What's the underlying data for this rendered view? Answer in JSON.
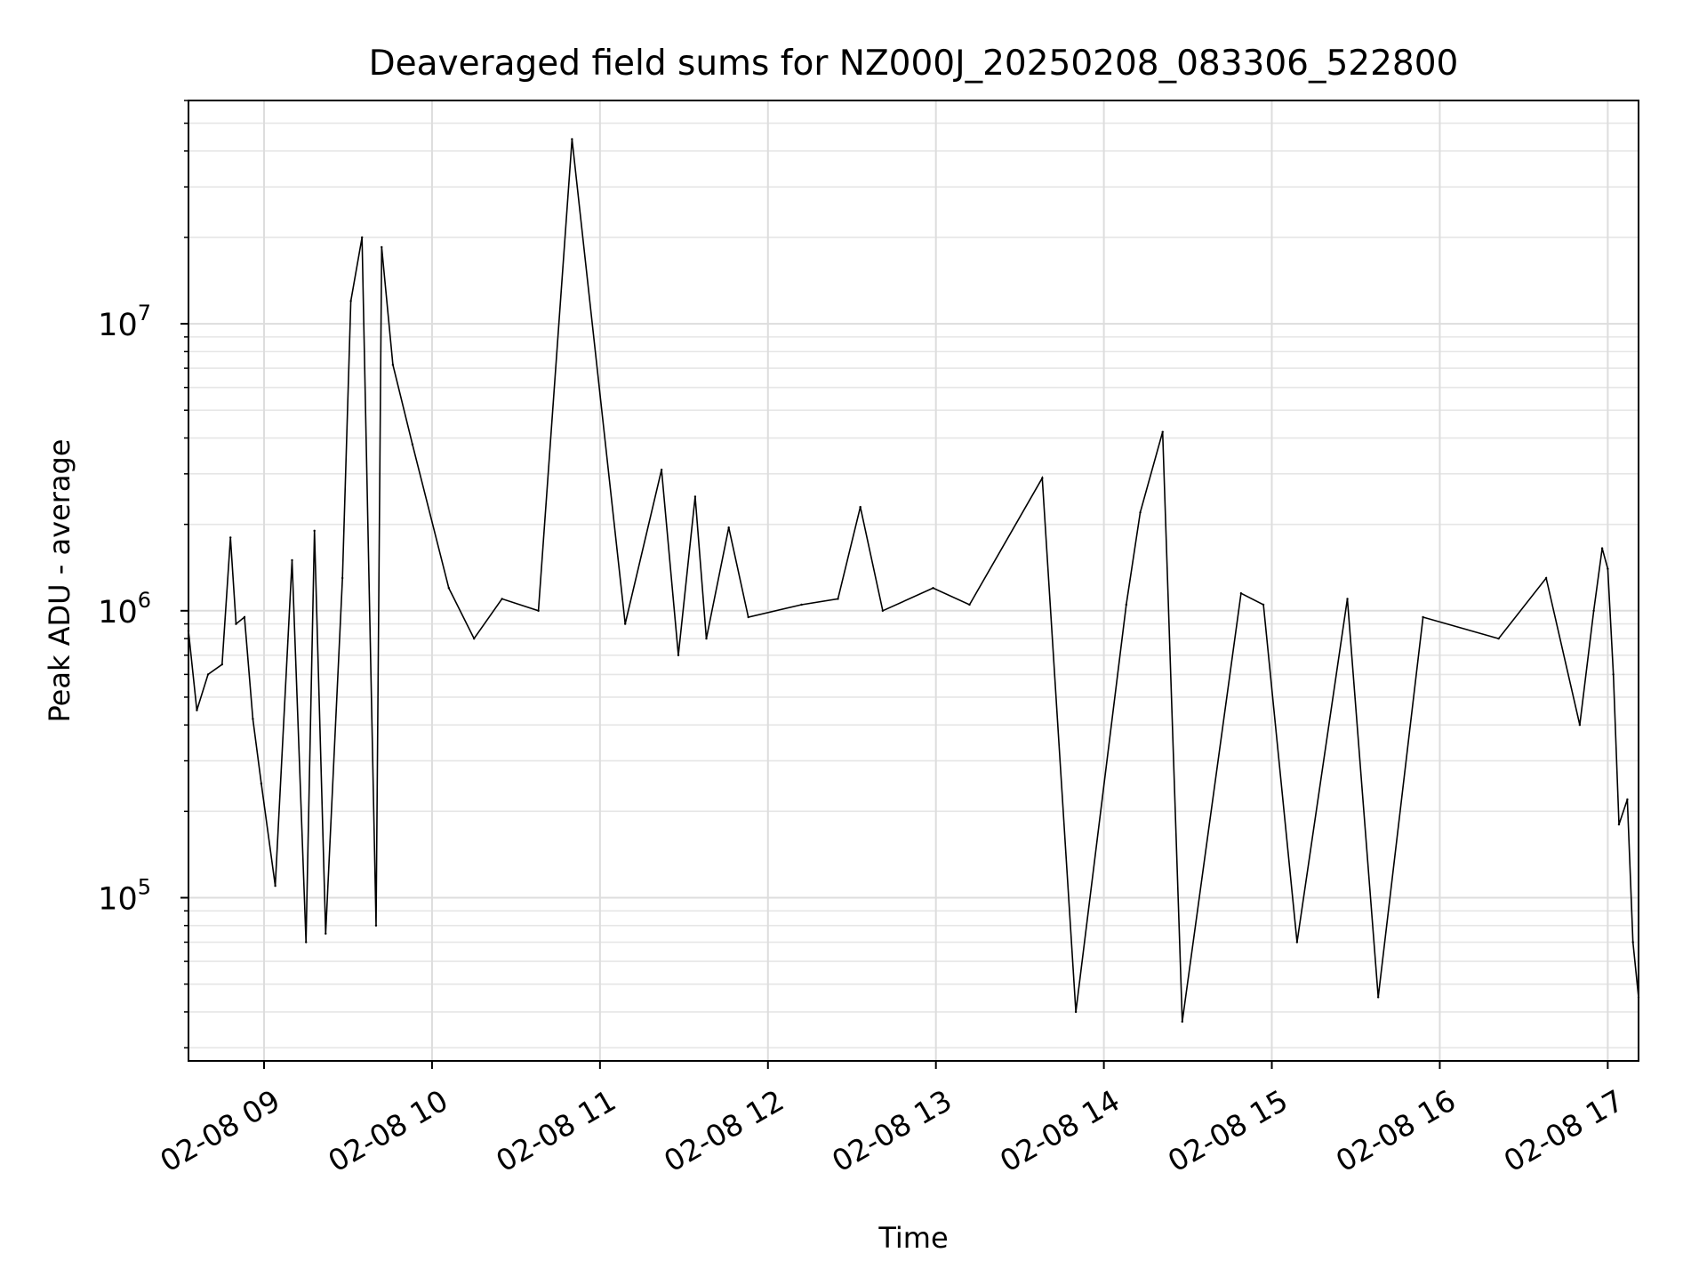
{
  "chart_data": {
    "type": "line",
    "title": "Deaveraged field sums for NZ000J_20250208_083306_522800",
    "xlabel": "Time",
    "ylabel": "Peak ADU - average",
    "yscale": "log",
    "ylim": [
      27000,
      60000000
    ],
    "xlim": [
      "2025-02-08 08:33",
      "2025-02-08 17:11"
    ],
    "grid": true,
    "x_tick_labels": [
      "02-08 09",
      "02-08 10",
      "02-08 11",
      "02-08 12",
      "02-08 13",
      "02-08 14",
      "02-08 15",
      "02-08 16",
      "02-08 17"
    ],
    "x_ticks": [
      "2025-02-08 09:00",
      "2025-02-08 10:00",
      "2025-02-08 11:00",
      "2025-02-08 12:00",
      "2025-02-08 13:00",
      "2025-02-08 14:00",
      "2025-02-08 15:00",
      "2025-02-08 16:00",
      "2025-02-08 17:00"
    ],
    "y_ticks": [
      {
        "value": 100000,
        "base": "10",
        "exp": "5"
      },
      {
        "value": 1000000,
        "base": "10",
        "exp": "6"
      },
      {
        "value": 10000000,
        "base": "10",
        "exp": "7"
      }
    ],
    "line_color": "#000000",
    "series": [
      {
        "x": [
          "2025-02-08 08:33",
          "2025-02-08 08:36",
          "2025-02-08 08:40",
          "2025-02-08 08:45",
          "2025-02-08 08:48",
          "2025-02-08 08:50",
          "2025-02-08 08:53",
          "2025-02-08 08:56",
          "2025-02-08 08:59",
          "2025-02-08 09:04",
          "2025-02-08 09:10",
          "2025-02-08 09:15",
          "2025-02-08 09:18",
          "2025-02-08 09:22",
          "2025-02-08 09:28",
          "2025-02-08 09:31",
          "2025-02-08 09:35",
          "2025-02-08 09:40",
          "2025-02-08 09:42",
          "2025-02-08 09:46",
          "2025-02-08 09:53",
          "2025-02-08 10:06",
          "2025-02-08 10:15",
          "2025-02-08 10:25",
          "2025-02-08 10:38",
          "2025-02-08 10:50",
          "2025-02-08 11:09",
          "2025-02-08 11:22",
          "2025-02-08 11:28",
          "2025-02-08 11:34",
          "2025-02-08 11:38",
          "2025-02-08 11:46",
          "2025-02-08 11:53",
          "2025-02-08 12:12",
          "2025-02-08 12:25",
          "2025-02-08 12:33",
          "2025-02-08 12:41",
          "2025-02-08 12:59",
          "2025-02-08 13:12",
          "2025-02-08 13:38",
          "2025-02-08 13:50",
          "2025-02-08 14:08",
          "2025-02-08 14:13",
          "2025-02-08 14:21",
          "2025-02-08 14:28",
          "2025-02-08 14:49",
          "2025-02-08 14:57",
          "2025-02-08 15:09",
          "2025-02-08 15:27",
          "2025-02-08 15:38",
          "2025-02-08 15:54",
          "2025-02-08 16:21",
          "2025-02-08 16:38",
          "2025-02-08 16:50",
          "2025-02-08 16:55",
          "2025-02-08 16:58",
          "2025-02-08 17:00",
          "2025-02-08 17:02",
          "2025-02-08 17:04",
          "2025-02-08 17:07",
          "2025-02-08 17:09",
          "2025-02-08 17:11"
        ],
        "y": [
          850000,
          450000,
          600000,
          650000,
          1800000,
          900000,
          950000,
          420000,
          250000,
          110000,
          1500000,
          70000,
          1900000,
          75000,
          1300000,
          12000000,
          20000000,
          80000,
          18500000,
          7200000,
          3800000,
          1200000,
          800000,
          1100000,
          1000000,
          44000000,
          900000,
          3100000,
          700000,
          2500000,
          800000,
          1950000,
          950000,
          1050000,
          1100000,
          2300000,
          1000000,
          1200000,
          1050000,
          2900000,
          40000,
          1050000,
          2200000,
          4200000,
          37000,
          1150000,
          1050000,
          70000,
          1100000,
          45000,
          950000,
          800000,
          1300000,
          400000,
          1000000,
          1650000,
          1400000,
          600000,
          180000,
          220000,
          70000,
          45000
        ]
      }
    ]
  }
}
